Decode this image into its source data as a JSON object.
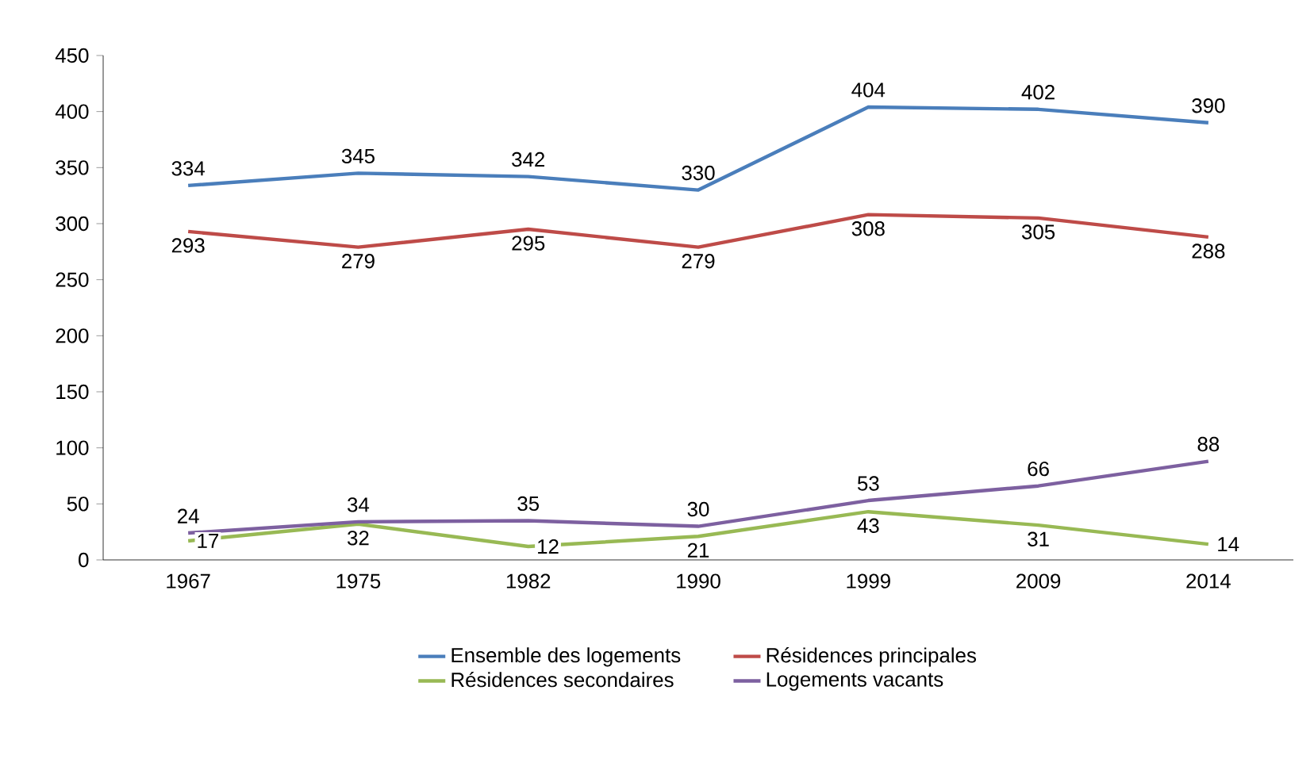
{
  "chart_data": {
    "type": "line",
    "categories": [
      "1967",
      "1975",
      "1982",
      "1990",
      "1999",
      "2009",
      "2014"
    ],
    "series": [
      {
        "name": "Ensemble des logements",
        "color": "#4a7ebb",
        "values": [
          334,
          345,
          342,
          330,
          404,
          402,
          390
        ]
      },
      {
        "name": "Résidences principales",
        "color": "#be4b48",
        "values": [
          293,
          279,
          295,
          279,
          308,
          305,
          288
        ]
      },
      {
        "name": "Résidences secondaires",
        "color": "#98b954",
        "values": [
          17,
          32,
          12,
          21,
          43,
          31,
          14
        ]
      },
      {
        "name": "Logements vacants",
        "color": "#7d60a0",
        "values": [
          24,
          34,
          35,
          30,
          53,
          66,
          88
        ]
      }
    ],
    "ylim": [
      0,
      450
    ],
    "yticks": [
      0,
      50,
      100,
      150,
      200,
      250,
      300,
      350,
      400,
      450
    ],
    "data_labels": true,
    "legend": "bottom",
    "marker": "none",
    "line_style": "solid"
  }
}
